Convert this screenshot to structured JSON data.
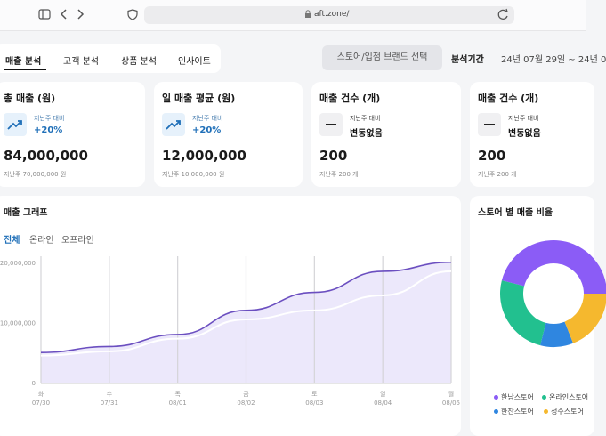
{
  "browser": {
    "url": "aft.zone/"
  },
  "tabs": [
    "매출 분석",
    "고객 분석",
    "상품 분석",
    "인사이트"
  ],
  "store_select": "스토어/입점 브랜드 선택",
  "period": {
    "label": "분석기간",
    "value": "24년 07월 29일 ~ 24년 0"
  },
  "cards": [
    {
      "title": "총 매출 (원)",
      "compare_label": "지난주 대비",
      "change": "+20%",
      "trend": "up",
      "value": "84,000,000",
      "previous": "지난주 70,000,000 원"
    },
    {
      "title": "일 매출 평균 (원)",
      "compare_label": "지난주 대비",
      "change": "+20%",
      "trend": "up",
      "value": "12,000,000",
      "previous": "지난주 10,000,000 원"
    },
    {
      "title": "매출 건수 (개)",
      "compare_label": "지난주 대비",
      "change": "변동없음",
      "trend": "flat",
      "value": "200",
      "previous": "지난주 200 개"
    },
    {
      "title": "매출 건수 (개)",
      "compare_label": "지난주 대비",
      "change": "변동없음",
      "trend": "flat",
      "value": "200",
      "previous": "지난주 200 개"
    }
  ],
  "sales_graph": {
    "type": "line",
    "title": "매출 그래프",
    "filters": [
      "전체",
      "온라인",
      "오프라인"
    ],
    "weekdays": [
      "화",
      "수",
      "목",
      "금",
      "토",
      "일",
      "월"
    ],
    "categories": [
      "07/30",
      "07/31",
      "08/01",
      "08/02",
      "08/03",
      "08/04",
      "08/05"
    ],
    "series": [
      {
        "color": "#6b4fc0",
        "values": [
          5000000,
          6000000,
          8000000,
          12000000,
          15000000,
          18500000,
          20000000
        ]
      },
      {
        "color": "#ffffff",
        "values": [
          4500000,
          5200000,
          7300000,
          10500000,
          12000000,
          14500000,
          18500000
        ]
      }
    ],
    "area_color": "#ece8fb",
    "ylim": [
      0,
      21000000
    ],
    "yticks": [
      0,
      {
        "value": 10000000,
        "label": "10,000,000"
      },
      {
        "value": 20000000,
        "label": "20,000,000"
      }
    ],
    "grid": true
  },
  "store_share": {
    "type": "pie",
    "title": "스토어 별 매출 비율",
    "categories": [
      "한남스토어",
      "온라인스토어",
      "한잔스토어",
      "성수스토어"
    ],
    "values": [
      46,
      25,
      10,
      19
    ],
    "colors": [
      "#8b5cf6",
      "#22c08f",
      "#2f86e0",
      "#f5b82e"
    ]
  }
}
